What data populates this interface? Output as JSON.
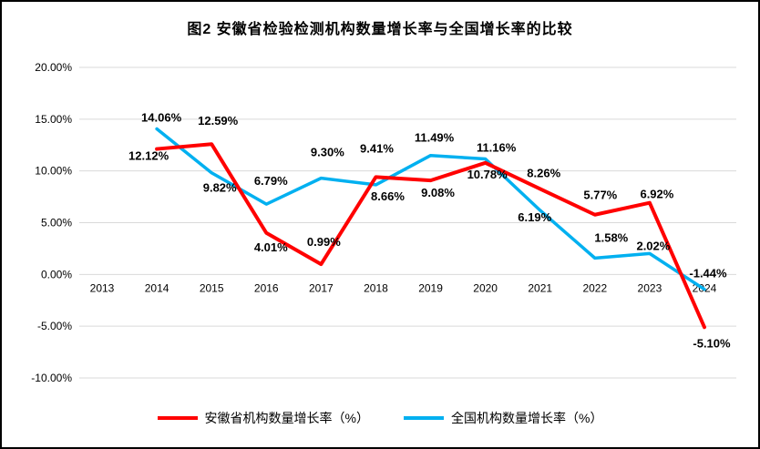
{
  "chart_data": {
    "type": "line",
    "title": "图2 安徽省检验检测机构数量增长率与全国增长率的比较",
    "x": [
      2013,
      2014,
      2015,
      2016,
      2017,
      2018,
      2019,
      2020,
      2021,
      2022,
      2023,
      2024
    ],
    "y_axis": {
      "min": -10,
      "max": 20,
      "step": 5,
      "tick_labels": [
        "20.00%",
        "15.00%",
        "10.00%",
        "5.00%",
        "0.00%",
        "-5.00%",
        "-10.00%"
      ]
    },
    "grid": "horizontal",
    "legend_position": "bottom",
    "series": [
      {
        "name": "安徽省机构数量增长率（%）",
        "color": "#FF0000",
        "start_year": 2014,
        "values": [
          12.12,
          12.59,
          4.01,
          0.99,
          9.41,
          9.08,
          10.78,
          8.26,
          5.77,
          6.92,
          -5.1
        ],
        "labels": [
          "12.12%",
          "12.59%",
          "4.01%",
          "0.99%",
          "9.41%",
          "9.08%",
          "10.78%",
          "8.26%",
          "5.77%",
          "6.92%",
          "-5.10%"
        ]
      },
      {
        "name": "全国机构数量增长率（%）",
        "color": "#00B0F0",
        "start_year": 2014,
        "values": [
          14.06,
          9.82,
          6.79,
          9.3,
          8.66,
          11.49,
          11.16,
          6.19,
          1.58,
          2.02,
          -1.44
        ],
        "labels": [
          "14.06%",
          "9.82%",
          "6.79%",
          "9.30%",
          "8.66%",
          "11.49%",
          "11.16%",
          "6.19%",
          "1.58%",
          "2.02%",
          "-1.44%"
        ]
      }
    ]
  }
}
